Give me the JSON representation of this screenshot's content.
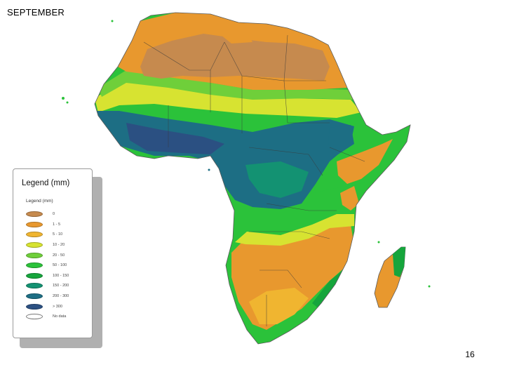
{
  "title": "SEPTEMBER",
  "page_number": "16",
  "legend": {
    "title": "Legend (mm)",
    "subtitle": "Legend (mm)",
    "items": [
      {
        "label": "0",
        "color": "#c68a4e"
      },
      {
        "label": "1 - 5",
        "color": "#e8982e"
      },
      {
        "label": "5 - 10",
        "color": "#f0b530"
      },
      {
        "label": "10 - 20",
        "color": "#d7e331"
      },
      {
        "label": "20 - 50",
        "color": "#6fcf3a"
      },
      {
        "label": "50 - 100",
        "color": "#2bc23a"
      },
      {
        "label": "100 - 150",
        "color": "#16a53c"
      },
      {
        "label": "150 - 200",
        "color": "#139272"
      },
      {
        "label": "200 - 300",
        "color": "#1d6e84"
      },
      {
        "label": "> 300",
        "color": "#2b5082"
      },
      {
        "label": "No data",
        "color": "#ffffff"
      }
    ]
  }
}
